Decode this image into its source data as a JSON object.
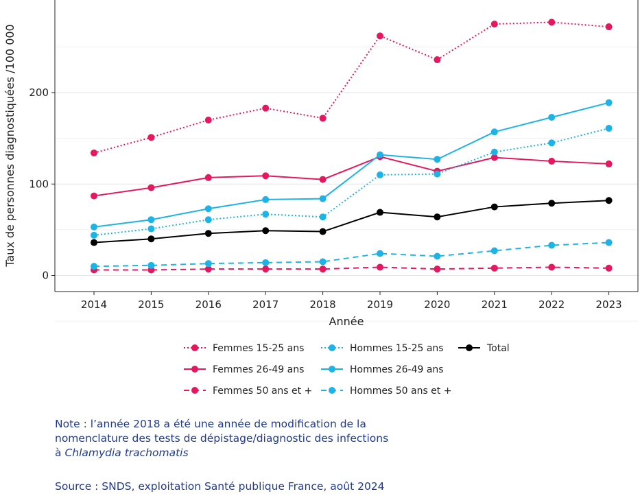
{
  "chart_data": {
    "type": "line",
    "xlabel": "Année",
    "ylabel": "Taux de personnes diagnostiquées /100 000",
    "x": [
      2014,
      2015,
      2016,
      2017,
      2018,
      2019,
      2020,
      2021,
      2022,
      2023
    ],
    "ylim": [
      -10,
      300
    ],
    "yticks": [
      0,
      100,
      200
    ],
    "grid": true,
    "legend_position": "bottom",
    "series": [
      {
        "name": "Femmes 15-25 ans",
        "color": "#e5175f",
        "dash": "dotted",
        "values": [
          134,
          151,
          170,
          183,
          172,
          262,
          236,
          275,
          277,
          272
        ]
      },
      {
        "name": "Femmes 26-49 ans",
        "color": "#e5175f",
        "dash": "solid",
        "values": [
          87,
          96,
          107,
          109,
          105,
          130,
          114,
          129,
          125,
          122
        ]
      },
      {
        "name": "Femmes 50 ans et +",
        "color": "#e5175f",
        "dash": "dashed",
        "values": [
          6,
          6,
          7,
          7,
          7,
          9,
          7,
          8,
          9,
          8
        ]
      },
      {
        "name": "Hommes 15-25 ans",
        "color": "#1cb3e6",
        "dash": "dotted",
        "values": [
          44,
          51,
          61,
          67,
          64,
          110,
          111,
          135,
          145,
          161
        ]
      },
      {
        "name": "Hommes 26-49 ans",
        "color": "#1cb3e6",
        "dash": "solid",
        "values": [
          53,
          61,
          73,
          83,
          84,
          132,
          127,
          157,
          173,
          189
        ]
      },
      {
        "name": "Hommes 50 ans et +",
        "color": "#1cb3e6",
        "dash": "dashed",
        "values": [
          10,
          11,
          13,
          14,
          15,
          24,
          21,
          27,
          33,
          36
        ]
      },
      {
        "name": "Total",
        "color": "#000000",
        "dash": "solid",
        "values": [
          36,
          40,
          46,
          49,
          48,
          69,
          64,
          75,
          79,
          82
        ]
      }
    ]
  },
  "note": {
    "line1": "Note : l’année 2018 a été une année de modification de la",
    "line2": "nomenclature des tests de dépistage/diagnostic des infections",
    "line3_prefix": "à ",
    "line3_italic": "Chlamydia trachomatis"
  },
  "source": "Source : SNDS, exploitation Santé publique France, août 2024"
}
